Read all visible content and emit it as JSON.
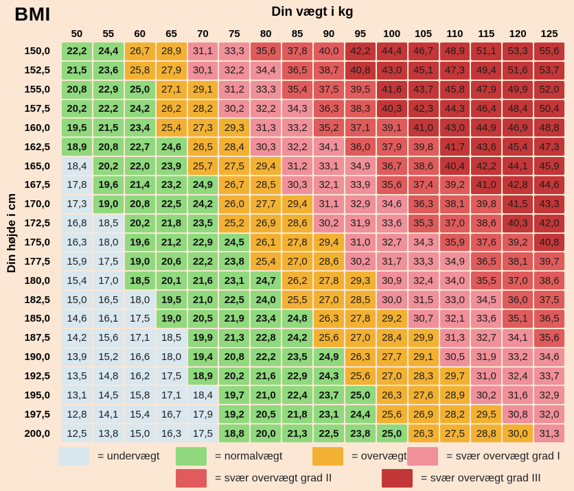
{
  "title": "BMI",
  "x_axis_title": "Din vægt i kg",
  "y_axis_title": "Din højde i cm",
  "colors": {
    "bg": "#fbe7d4",
    "u": "#d9e7ef",
    "n": "#90d97e",
    "o": "#f3b133",
    "1": "#f0909a",
    "2": "#e05c5c",
    "3": "#c33738"
  },
  "legend": [
    {
      "key": "u",
      "label": "= undervægt"
    },
    {
      "key": "n",
      "label": "= normalvægt"
    },
    {
      "key": "o",
      "label": "= overvægt"
    },
    {
      "key": "1",
      "label": "= svær overvægt grad I"
    },
    {
      "key": "2",
      "label": "= svær overvægt grad II"
    },
    {
      "key": "3",
      "label": "= svær overvægt grad III"
    }
  ],
  "chart_data": {
    "type": "heatmap",
    "title": "BMI",
    "xlabel": "Din vægt i kg",
    "ylabel": "Din højde i cm",
    "x": [
      "50",
      "55",
      "60",
      "65",
      "70",
      "75",
      "80",
      "85",
      "90",
      "95",
      "100",
      "105",
      "110",
      "115",
      "120",
      "125"
    ],
    "y": [
      "150,0",
      "152,5",
      "155,0",
      "157,5",
      "160,0",
      "162,5",
      "165,0",
      "167,5",
      "170,0",
      "172,5",
      "175,0",
      "177,5",
      "180,0",
      "182,5",
      "185,0",
      "187,5",
      "190,0",
      "192,5",
      "195,0",
      "197,5",
      "200,0"
    ],
    "values": [
      [
        "22,2",
        "24,4",
        "26,7",
        "28,9",
        "31,1",
        "33,3",
        "35,6",
        "37,8",
        "40,0",
        "42,2",
        "44,4",
        "46,7",
        "48,9",
        "51,1",
        "53,3",
        "55,6"
      ],
      [
        "21,5",
        "23,6",
        "25,8",
        "27,9",
        "30,1",
        "32,2",
        "34,4",
        "36,5",
        "38,7",
        "40,8",
        "43,0",
        "45,1",
        "47,3",
        "49,4",
        "51,6",
        "53,7"
      ],
      [
        "20,8",
        "22,9",
        "25,0",
        "27,1",
        "29,1",
        "31,2",
        "33,3",
        "35,4",
        "37,5",
        "39,5",
        "41,6",
        "43,7",
        "45,8",
        "47,9",
        "49,9",
        "52,0"
      ],
      [
        "20,2",
        "22,2",
        "24,2",
        "26,2",
        "28,2",
        "30,2",
        "32,2",
        "34,3",
        "36,3",
        "38,3",
        "40,3",
        "42,3",
        "44,3",
        "46,4",
        "48,4",
        "50,4"
      ],
      [
        "19,5",
        "21,5",
        "23,4",
        "25,4",
        "27,3",
        "29,3",
        "31,3",
        "33,2",
        "35,2",
        "37,1",
        "39,1",
        "41,0",
        "43,0",
        "44,9",
        "46,9",
        "48,8"
      ],
      [
        "18,9",
        "20,8",
        "22,7",
        "24,6",
        "26,5",
        "28,4",
        "30,3",
        "32,2",
        "34,1",
        "36,0",
        "37,9",
        "39,8",
        "41,7",
        "43,6",
        "45,4",
        "47,3"
      ],
      [
        "18,4",
        "20,2",
        "22,0",
        "23,9",
        "25,7",
        "27,5",
        "29,4",
        "31,2",
        "33,1",
        "34,9",
        "36,7",
        "38,6",
        "40,4",
        "42,2",
        "44,1",
        "45,9"
      ],
      [
        "17,8",
        "19,6",
        "21,4",
        "23,2",
        "24,9",
        "26,7",
        "28,5",
        "30,3",
        "32,1",
        "33,9",
        "35,6",
        "37,4",
        "39,2",
        "41,0",
        "42,8",
        "44,6"
      ],
      [
        "17,3",
        "19,0",
        "20,8",
        "22,5",
        "24,2",
        "26,0",
        "27,7",
        "29,4",
        "31,1",
        "32,9",
        "34,6",
        "36,3",
        "38,1",
        "39,8",
        "41,5",
        "43,3"
      ],
      [
        "16,8",
        "18,5",
        "20,2",
        "21,8",
        "23,5",
        "25,2",
        "26,9",
        "28,6",
        "30,2",
        "31,9",
        "33,6",
        "35,3",
        "37,0",
        "38,6",
        "40,3",
        "42,0"
      ],
      [
        "16,3",
        "18,0",
        "19,6",
        "21,2",
        "22,9",
        "24,5",
        "26,1",
        "27,8",
        "29,4",
        "31,0",
        "32,7",
        "34,3",
        "35,9",
        "37,6",
        "39,2",
        "40,8"
      ],
      [
        "15,9",
        "17,5",
        "19,0",
        "20,6",
        "22,2",
        "23,8",
        "25,4",
        "27,0",
        "28,6",
        "30,2",
        "31,7",
        "33,3",
        "34,9",
        "36,5",
        "38,1",
        "39,7"
      ],
      [
        "15,4",
        "17,0",
        "18,5",
        "20,1",
        "21,6",
        "23,1",
        "24,7",
        "26,2",
        "27,8",
        "29,3",
        "30,9",
        "32,4",
        "34,0",
        "35,5",
        "37,0",
        "38,6"
      ],
      [
        "15,0",
        "16,5",
        "18,0",
        "19,5",
        "21,0",
        "22,5",
        "24,0",
        "25,5",
        "27,0",
        "28,5",
        "30,0",
        "31,5",
        "33,0",
        "34,5",
        "36,0",
        "37,5"
      ],
      [
        "14,6",
        "16,1",
        "17,5",
        "19,0",
        "20,5",
        "21,9",
        "23,4",
        "24,8",
        "26,3",
        "27,8",
        "29,2",
        "30,7",
        "32,1",
        "33,6",
        "35,1",
        "36,5"
      ],
      [
        "14,2",
        "15,6",
        "17,1",
        "18,5",
        "19,9",
        "21,3",
        "22,8",
        "24,2",
        "25,6",
        "27,0",
        "28,4",
        "29,9",
        "31,3",
        "32,7",
        "34,1",
        "35,6"
      ],
      [
        "13,9",
        "15,2",
        "16,6",
        "18,0",
        "19,4",
        "20,8",
        "22,2",
        "23,5",
        "24,9",
        "26,3",
        "27,7",
        "29,1",
        "30,5",
        "31,9",
        "33,2",
        "34,6"
      ],
      [
        "13,5",
        "14,8",
        "16,2",
        "17,5",
        "18,9",
        "20,2",
        "21,6",
        "22,9",
        "24,3",
        "25,6",
        "27,0",
        "28,3",
        "29,7",
        "31,0",
        "32,4",
        "33,7"
      ],
      [
        "13,1",
        "14,5",
        "15,8",
        "17,1",
        "18,4",
        "19,7",
        "21,0",
        "22,4",
        "23,7",
        "25,0",
        "26,3",
        "27,6",
        "28,9",
        "30,2",
        "31,6",
        "32,9"
      ],
      [
        "12,8",
        "14,1",
        "15,4",
        "16,7",
        "17,9",
        "19,2",
        "20,5",
        "21,8",
        "23,1",
        "24,4",
        "25,6",
        "26,9",
        "28,2",
        "29,5",
        "30,8",
        "32,0"
      ],
      [
        "12,5",
        "13,8",
        "15,0",
        "16,3",
        "17,5",
        "18,8",
        "20,0",
        "21,3",
        "22,5",
        "23,8",
        "25,0",
        "26,3",
        "27,5",
        "28,8",
        "30,0",
        "31,3"
      ]
    ],
    "categories": [
      "nnoo112223333333",
      "nnoo111223333333",
      "nnnoo11222333333",
      "nnnoo11122333333",
      "nnnooo1122233333",
      "nnnnoo1112223333",
      "unnnooo111223333",
      "unnnnoo111222333",
      "unnnnooo11122233",
      "uunnnooo11122233",
      "uunnnnooo1112223",
      "uunnnnooo1111222",
      "uunnnnnooo111222",
      "uuunnnnooo111122",
      "uuunnnnnooo11122",
      "uuuunnnnoooo1112",
      "uuuunnnnnooo1111",
      "uuuunnnnnoooo111",
      "uuuuunnnnnooo111",
      "uuuuunnnnnoooo11",
      "uuuuunnnnnnoooo1"
    ]
  }
}
